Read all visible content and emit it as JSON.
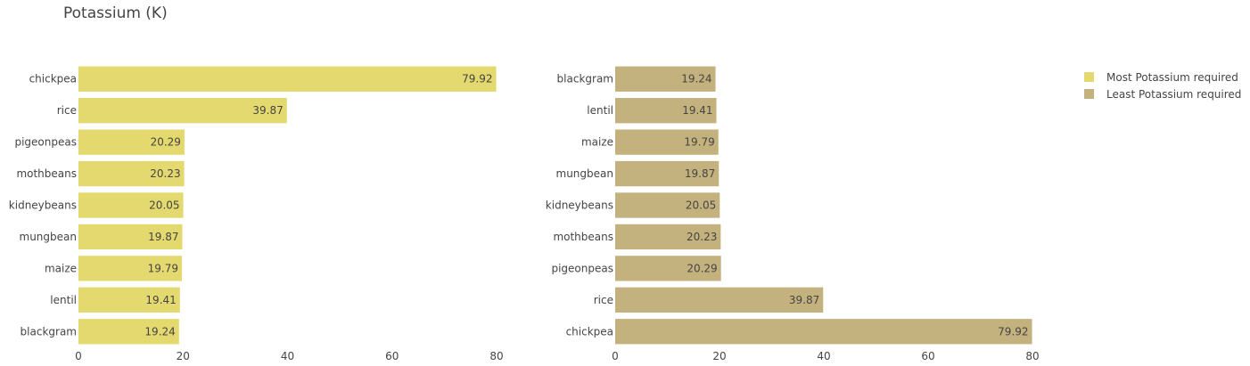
{
  "chart_data": {
    "type": "bar",
    "title": "Potassium (K)",
    "orientation": "horizontal",
    "xlim": [
      0,
      80
    ],
    "x_ticks": [
      0,
      20,
      40,
      60,
      80
    ],
    "series": [
      {
        "name": "Most Potassium required",
        "color": "#e4d96f",
        "categories": [
          "chickpea",
          "rice",
          "pigeonpeas",
          "mothbeans",
          "kidneybeans",
          "mungbean",
          "maize",
          "lentil",
          "blackgram"
        ],
        "values": [
          79.92,
          39.87,
          20.29,
          20.23,
          20.05,
          19.87,
          19.79,
          19.41,
          19.24
        ]
      },
      {
        "name": "Least Potassium required",
        "color": "#c4b27e",
        "categories": [
          "blackgram",
          "lentil",
          "maize",
          "mungbean",
          "kidneybeans",
          "mothbeans",
          "pigeonpeas",
          "rice",
          "chickpea"
        ],
        "values": [
          19.24,
          19.41,
          19.79,
          19.87,
          20.05,
          20.23,
          20.29,
          39.87,
          79.92
        ]
      }
    ],
    "legend_position": "top-right",
    "grid": false
  }
}
